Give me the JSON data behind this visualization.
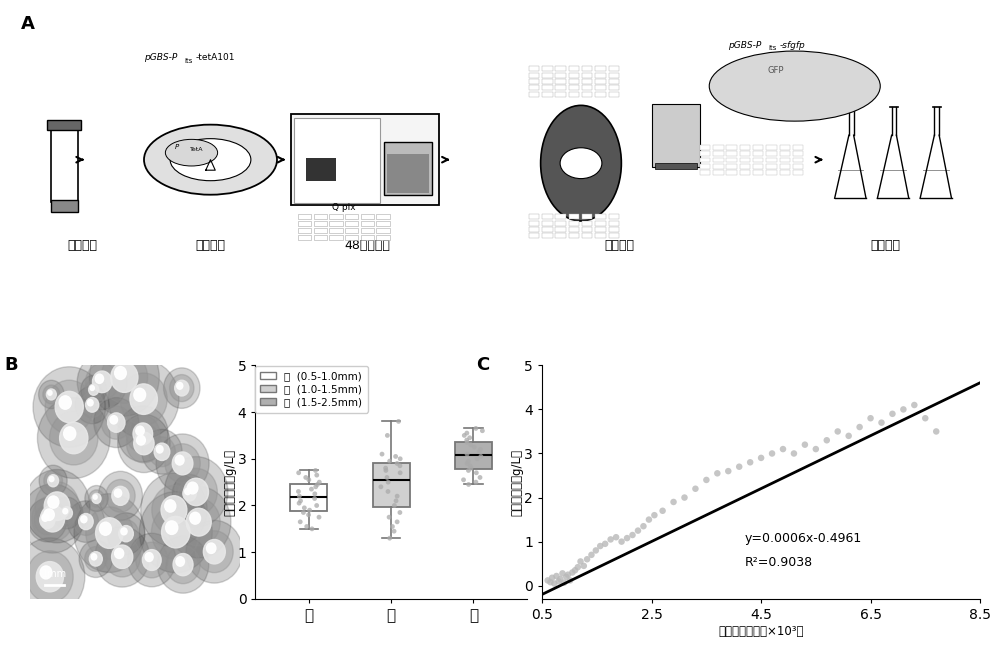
{
  "panel_labels": [
    "A",
    "B",
    "C"
  ],
  "boxplot_categories": [
    "小",
    "中",
    "大"
  ],
  "boxplot_ylabel": "乙醇酸浓度（g/L）",
  "boxplot_ylim": [
    0,
    5
  ],
  "boxplot_yticks": [
    0,
    1,
    2,
    3,
    4,
    5
  ],
  "legend_label_small": "小  (0.5-1.0mm)",
  "legend_label_medium": "中  (1.0-1.5mm)",
  "legend_label_large": "大  (1.5-2.5mm)",
  "scatter_xlabel": "单细胞荧光値（×10³）",
  "scatter_ylabel": "乙醇酸浓度（g/L）",
  "scatter_xlim": [
    0.5,
    8.5
  ],
  "scatter_ylim": [
    -0.5,
    5
  ],
  "scatter_xticks": [
    0.5,
    2.5,
    4.5,
    6.5,
    8.5
  ],
  "scatter_yticks": [
    0,
    1,
    2,
    3,
    4,
    5
  ],
  "scatter_ytick_labels": [
    "0",
    "1",
    "2",
    "3",
    "4",
    "5"
  ],
  "regression_eq": "y=0.0006x-0.4961",
  "regression_r2": "R²=0.9038",
  "regression_slope_scaled": 0.6,
  "regression_intercept": -0.4961,
  "workflow_labels": [
    "途径文库",
    "平板选择",
    "48孔板发酵",
    "荧光筛选",
    "摇瓶发酵"
  ],
  "plasmid_label_left": "pGBS-P",
  "plasmid_label_left_sub": "its",
  "plasmid_label_left_rest": "-tetA101",
  "plasmid_label_right": "pGBS-P",
  "plasmid_label_right_sub": "its",
  "plasmid_label_right_rest": "-sfgfp",
  "small_data": [
    1.65,
    1.75,
    1.8,
    1.85,
    1.9,
    1.95,
    2.0,
    2.05,
    2.1,
    2.15,
    2.2,
    2.25,
    2.3,
    2.35,
    2.4,
    2.45,
    2.5,
    2.55,
    2.6,
    2.65,
    1.55,
    1.5,
    2.7,
    2.75
  ],
  "medium_data": [
    1.3,
    1.55,
    1.65,
    1.75,
    1.85,
    2.0,
    2.1,
    2.2,
    2.3,
    2.4,
    2.5,
    2.6,
    2.7,
    2.75,
    2.8,
    2.85,
    2.9,
    2.95,
    3.0,
    3.05,
    3.1,
    3.5,
    3.8,
    1.45
  ],
  "large_data": [
    2.5,
    2.6,
    2.7,
    2.75,
    2.8,
    2.85,
    2.9,
    2.95,
    3.0,
    3.05,
    3.1,
    3.15,
    3.2,
    3.25,
    3.3,
    3.35,
    3.4,
    3.45,
    3.5,
    3.55,
    3.6,
    3.65,
    2.55,
    2.45
  ],
  "scatter_x_raw": [
    600,
    650,
    680,
    720,
    760,
    800,
    830,
    870,
    900,
    940,
    970,
    1010,
    1050,
    1100,
    1150,
    1200,
    1260,
    1320,
    1400,
    1480,
    1560,
    1650,
    1750,
    1850,
    1950,
    2050,
    2150,
    2250,
    2350,
    2450,
    2550,
    2700,
    2900,
    3100,
    3300,
    3500,
    3700,
    3900,
    4100,
    4300,
    4500,
    4700,
    4900,
    5100,
    5300,
    5500,
    5700,
    5900,
    6100,
    6300,
    6500,
    6700,
    6900,
    7100,
    7300,
    7500,
    7700
  ],
  "scatter_y_raw": [
    0.12,
    0.08,
    0.18,
    0.05,
    0.22,
    0.1,
    0.15,
    0.28,
    0.07,
    0.2,
    0.25,
    0.12,
    0.3,
    0.35,
    0.42,
    0.55,
    0.45,
    0.6,
    0.7,
    0.8,
    0.9,
    0.95,
    1.05,
    1.1,
    1.0,
    1.08,
    1.15,
    1.25,
    1.35,
    1.5,
    1.6,
    1.7,
    1.9,
    2.0,
    2.2,
    2.4,
    2.55,
    2.6,
    2.7,
    2.8,
    2.9,
    3.0,
    3.1,
    3.0,
    3.2,
    3.1,
    3.3,
    3.5,
    3.4,
    3.6,
    3.8,
    3.7,
    3.9,
    4.0,
    4.1,
    3.8,
    3.5
  ],
  "box_facecolors": [
    "#ffffff",
    "#d0d0d0",
    "#b0b0b0"
  ],
  "box_edgecolor": "#777777",
  "jitter_color": "#aaaaaa",
  "scatter_dot_color": "#b8b8b8",
  "line_color": "#000000",
  "bg_color": "#ffffff"
}
